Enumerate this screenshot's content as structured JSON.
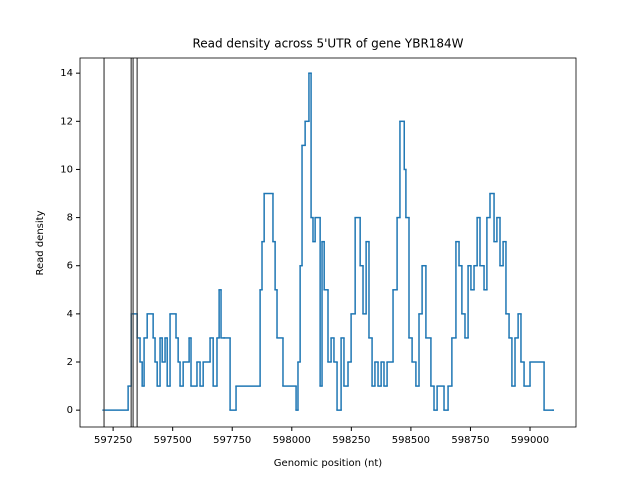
{
  "chart_data": {
    "type": "step",
    "title": "Read density across 5'UTR of gene YBR184W",
    "xlabel": "Genomic position (nt)",
    "ylabel": "Read density",
    "color": "#1f77b4",
    "x": [
      597208,
      597313,
      597326,
      597351,
      597363,
      597372,
      597380,
      597393,
      597418,
      597426,
      597435,
      597447,
      597456,
      597468,
      597477,
      597489,
      597514,
      597523,
      597531,
      597544,
      597569,
      597577,
      597602,
      597615,
      597628,
      597657,
      597670,
      597686,
      597695,
      597703,
      597716,
      597741,
      597766,
      597867,
      597875,
      597884,
      597921,
      597930,
      597938,
      597963,
      598018,
      598026,
      598035,
      598043,
      598056,
      598072,
      598081,
      598089,
      598098,
      598119,
      598127,
      598136,
      598152,
      598165,
      598177,
      598190,
      598207,
      598219,
      598236,
      598249,
      598266,
      598287,
      598299,
      598312,
      598324,
      598337,
      598349,
      598362,
      598375,
      598387,
      598400,
      598425,
      598442,
      598454,
      598472,
      598479,
      598492,
      598505,
      598521,
      598534,
      598547,
      598563,
      598584,
      598597,
      598610,
      598639,
      598656,
      598672,
      598689,
      598702,
      598714,
      598727,
      598740,
      598752,
      598765,
      598778,
      598790,
      598807,
      598819,
      598832,
      598849,
      598861,
      598874,
      598887,
      598899,
      598912,
      598924,
      598937,
      598950,
      598962,
      598975,
      599000,
      599059,
      599097
    ],
    "values": [
      0,
      1,
      4,
      3,
      2,
      1,
      3,
      4,
      3,
      2,
      1,
      3,
      2,
      3,
      1,
      4,
      3,
      2,
      1,
      2,
      3,
      1,
      2,
      1,
      2,
      3,
      1,
      3,
      5,
      3,
      3,
      0,
      1,
      5,
      7,
      9,
      7,
      5,
      3,
      1,
      0,
      2,
      6,
      11,
      12,
      14,
      8,
      7,
      8,
      1,
      7,
      5,
      2,
      3,
      2,
      0,
      3,
      1,
      2,
      4,
      8,
      6,
      4,
      7,
      3,
      1,
      2,
      1,
      2,
      1,
      2,
      5,
      8,
      12,
      10,
      8,
      3,
      2,
      1,
      4,
      6,
      3,
      1,
      0,
      1,
      0,
      1,
      3,
      7,
      6,
      4,
      3,
      6,
      5,
      6,
      8,
      6,
      5,
      8,
      9,
      7,
      8,
      6,
      7,
      4,
      3,
      1,
      3,
      4,
      2,
      1,
      2,
      0,
      0
    ],
    "vlines": {
      "x": [
        597212,
        597326,
        597334,
        597351
      ],
      "color": "#444444"
    },
    "xlim": [
      597111,
      599193
    ],
    "ylim": [
      -0.7,
      14.63
    ],
    "xticks": [
      597250,
      597500,
      597750,
      598000,
      598250,
      598500,
      598750,
      599000
    ],
    "yticks": [
      0,
      2,
      4,
      6,
      8,
      10,
      12,
      14
    ]
  }
}
